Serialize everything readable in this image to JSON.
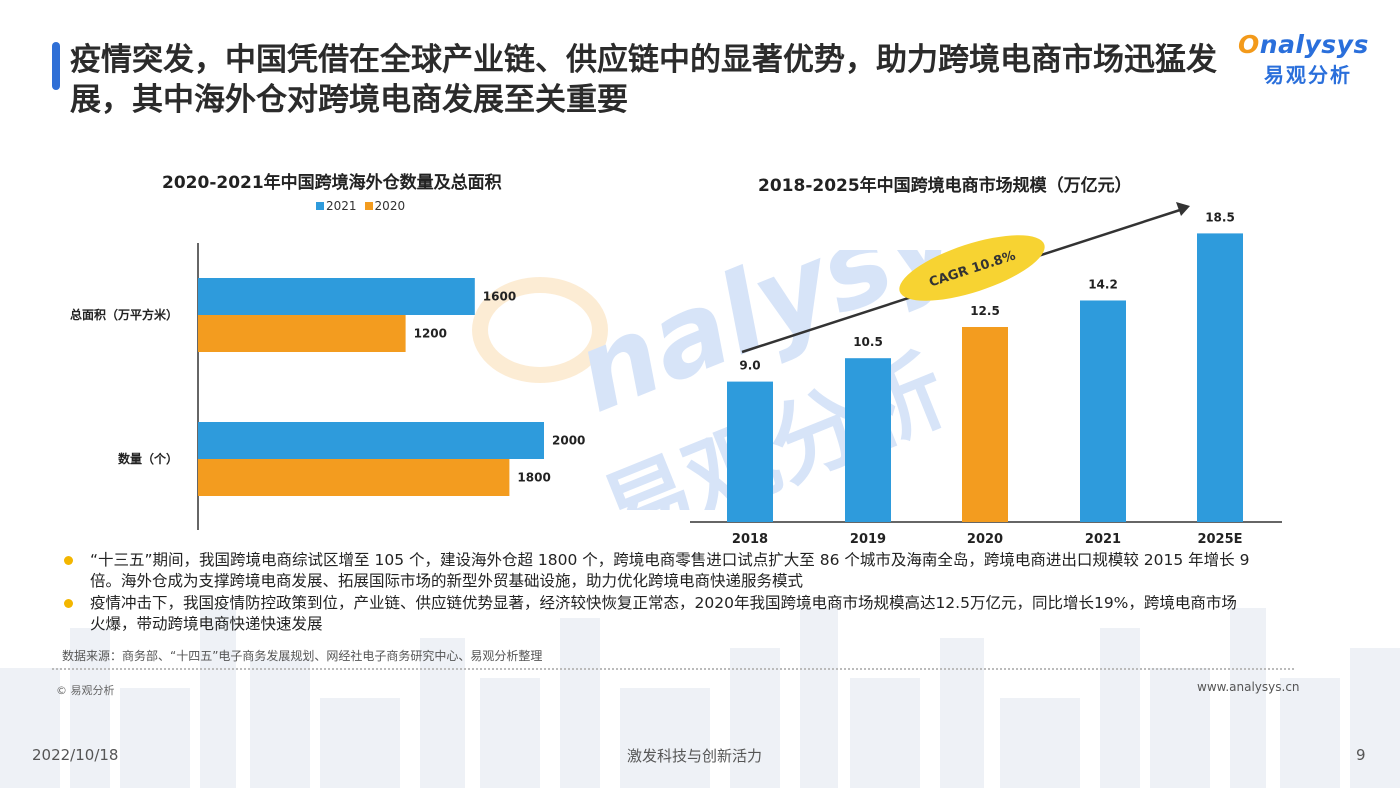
{
  "header": {
    "title": "疫情突发，中国凭借在全球产业链、供应链中的显著优势，助力跨境电商市场迅猛发展，其中海外仓对跨境电商发展至关重要",
    "logo_en_o": "O",
    "logo_en_rest": "nalysys",
    "logo_cn": "易观分析"
  },
  "colors": {
    "series_2021": "#2e9bdc",
    "series_2020": "#f39c1f",
    "accent": "#2f6fd6",
    "bullet": "#f3b600"
  },
  "chart_data": [
    {
      "type": "bar",
      "orientation": "horizontal",
      "title": "2020-2021年中国跨境海外仓数量及总面积",
      "categories": [
        "总面积（万平方米）",
        "数量（个）"
      ],
      "series": [
        {
          "name": "2021",
          "values": [
            1600,
            2000
          ]
        },
        {
          "name": "2020",
          "values": [
            1200,
            1800
          ]
        }
      ],
      "legend": "top",
      "grid": false
    },
    {
      "type": "bar",
      "title": "2018-2025年中国跨境电商市场规模（万亿元）",
      "categories": [
        "2018",
        "2019",
        "2020",
        "2021",
        "2025E"
      ],
      "values": [
        9.0,
        10.5,
        12.5,
        14.2,
        18.5
      ],
      "value_labels": [
        "9.0",
        "10.5",
        "12.5",
        "14.2",
        "18.5"
      ],
      "highlight_category": "2020",
      "annotation": "CAGR 10.8%",
      "grid": false
    }
  ],
  "bullets": [
    "“十三五”期间，我国跨境电商综试区增至 105 个，建设海外仓超 1800 个，跨境电商零售进口试点扩大至 86 个城市及海南全岛，跨境电商进出口规模较 2015 年增长 9 倍。海外仓成为支撑跨境电商发展、拓展国际市场的新型外贸基础设施，助力优化跨境电商快递服务模式",
    "疫情冲击下，我国疫情防控政策到位，产业链、供应链优势显著，经济较快恢复正常态，2020年我国跨境电商市场规模高达12.5万亿元，同比增长19%，跨境电商市场火爆，带动跨境电商快递快速发展"
  ],
  "footer": {
    "source": "数据来源：商务部、“十四五”电子商务发展规划、网经社电子商务研究中心、易观分析整理",
    "copyright": "© 易观分析",
    "website": "www.analysys.cn",
    "date": "2022/10/18",
    "slogan": "激发科技与创新活力",
    "page": "9"
  }
}
